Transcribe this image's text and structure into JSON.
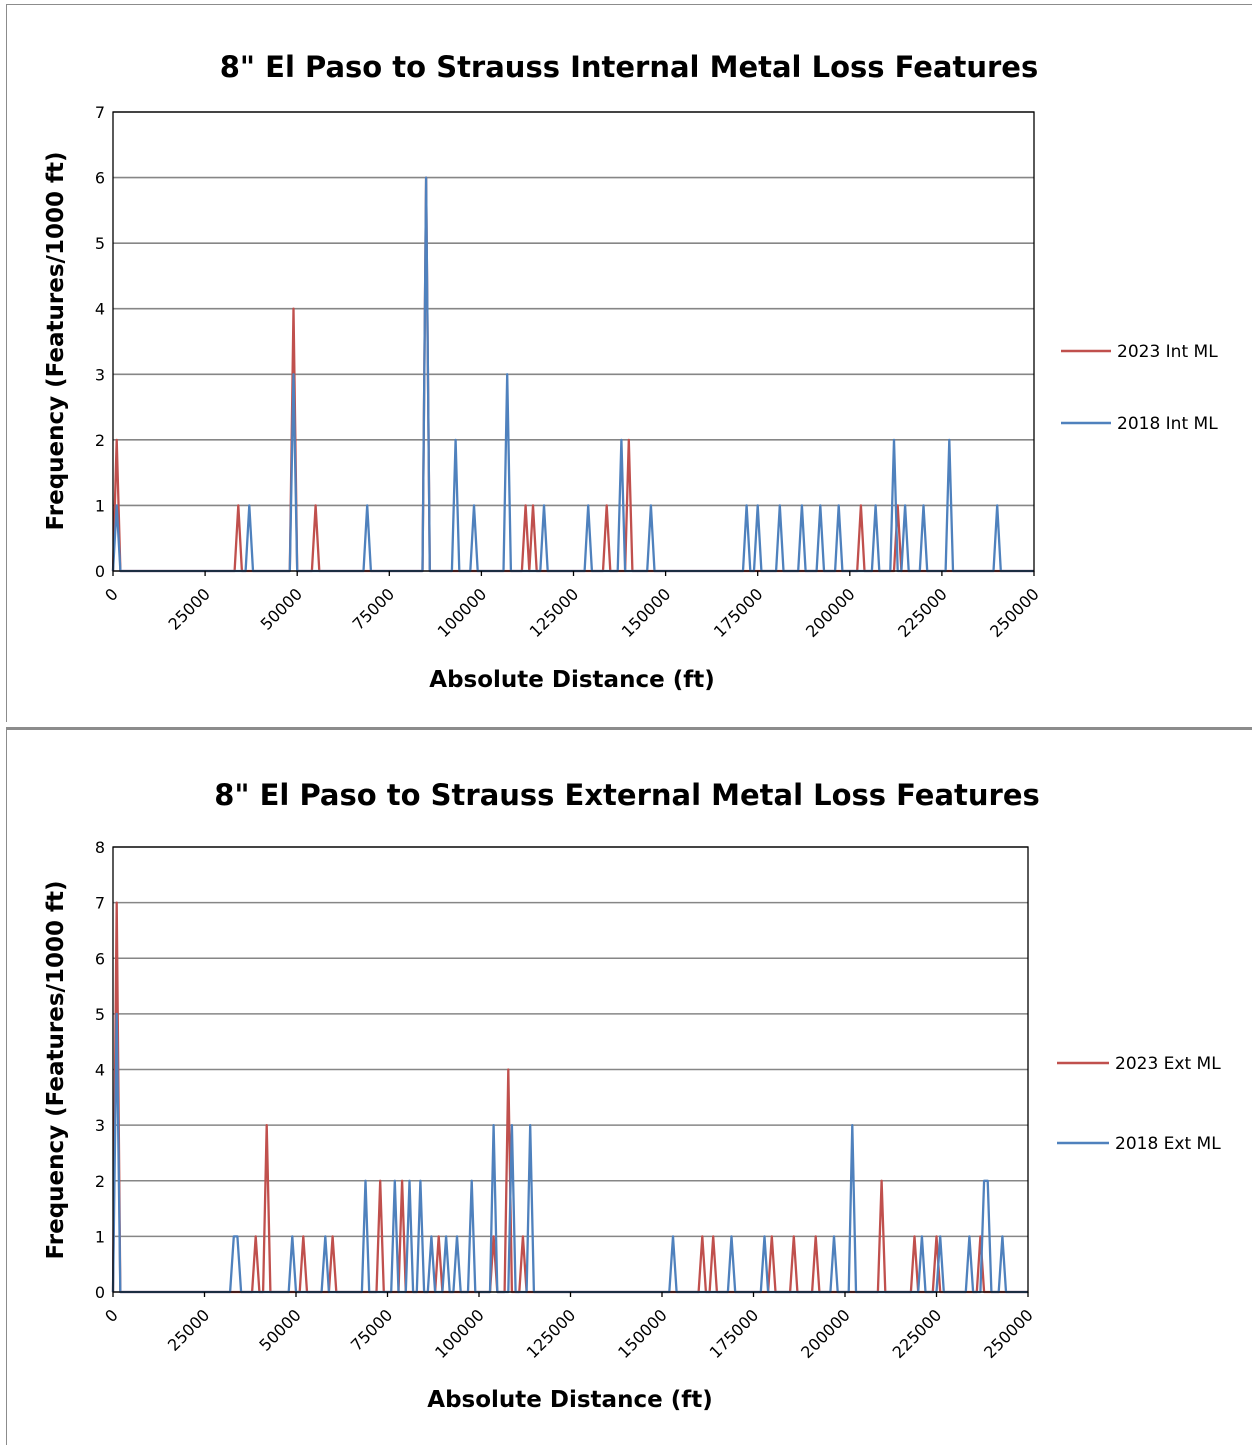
{
  "colors": {
    "series_2023": "#c0504d",
    "series_2018": "#4f81bd"
  },
  "chart_data": [
    {
      "type": "line",
      "title": "8\" El Paso to Strauss Internal Metal Loss Features",
      "xlabel": "Absolute Distance (ft)",
      "ylabel": "Frequency (Features/1000 ft)",
      "xlim": [
        0,
        250000
      ],
      "ylim": [
        0,
        7
      ],
      "xticks": [
        "0",
        "25000",
        "50000",
        "75000",
        "100000",
        "125000",
        "150000",
        "175000",
        "200000",
        "225000",
        "250000"
      ],
      "yticks": [
        "0",
        "1",
        "2",
        "3",
        "4",
        "5",
        "6",
        "7"
      ],
      "grid": true,
      "legend_position": "right",
      "series": [
        {
          "name": "2023 Int ML",
          "color": "#c0504d",
          "points": [
            [
              0,
              0
            ],
            [
              1000,
              2
            ],
            [
              2000,
              0
            ],
            [
              33000,
              0
            ],
            [
              34000,
              1
            ],
            [
              35000,
              0
            ],
            [
              48000,
              0
            ],
            [
              49000,
              4
            ],
            [
              50000,
              0
            ],
            [
              54000,
              0
            ],
            [
              55000,
              1
            ],
            [
              56000,
              0
            ],
            [
              84000,
              0
            ],
            [
              85000,
              6
            ],
            [
              86000,
              0
            ],
            [
              111000,
              0
            ],
            [
              112000,
              1
            ],
            [
              113000,
              0
            ],
            [
              114000,
              1
            ],
            [
              115000,
              0
            ],
            [
              133000,
              0
            ],
            [
              134000,
              1
            ],
            [
              135000,
              0
            ],
            [
              139000,
              0
            ],
            [
              140000,
              2
            ],
            [
              141000,
              0
            ],
            [
              202000,
              0
            ],
            [
              203000,
              1
            ],
            [
              204000,
              0
            ],
            [
              212000,
              0
            ],
            [
              213000,
              1
            ],
            [
              214000,
              0
            ],
            [
              250000,
              0
            ]
          ]
        },
        {
          "name": "2018 Int ML",
          "color": "#4f81bd",
          "points": [
            [
              0,
              0
            ],
            [
              1000,
              1
            ],
            [
              2000,
              0
            ],
            [
              36000,
              0
            ],
            [
              37000,
              1
            ],
            [
              38000,
              0
            ],
            [
              48000,
              0
            ],
            [
              49000,
              3
            ],
            [
              50000,
              0
            ],
            [
              68000,
              0
            ],
            [
              69000,
              1
            ],
            [
              70000,
              0
            ],
            [
              84000,
              0
            ],
            [
              85000,
              6
            ],
            [
              86000,
              0
            ],
            [
              92000,
              0
            ],
            [
              93000,
              2
            ],
            [
              94000,
              0
            ],
            [
              97000,
              0
            ],
            [
              98000,
              1
            ],
            [
              99000,
              0
            ],
            [
              106000,
              0
            ],
            [
              107000,
              3
            ],
            [
              108000,
              0
            ],
            [
              116000,
              0
            ],
            [
              117000,
              1
            ],
            [
              118000,
              0
            ],
            [
              128000,
              0
            ],
            [
              129000,
              1
            ],
            [
              130000,
              0
            ],
            [
              137000,
              0
            ],
            [
              138000,
              2
            ],
            [
              139000,
              0
            ],
            [
              145000,
              0
            ],
            [
              146000,
              1
            ],
            [
              147000,
              0
            ],
            [
              171000,
              0
            ],
            [
              172000,
              1
            ],
            [
              173000,
              0
            ],
            [
              174000,
              0
            ],
            [
              175000,
              1
            ],
            [
              176000,
              0
            ],
            [
              180000,
              0
            ],
            [
              181000,
              1
            ],
            [
              182000,
              0
            ],
            [
              186000,
              0
            ],
            [
              187000,
              1
            ],
            [
              188000,
              0
            ],
            [
              191000,
              0
            ],
            [
              192000,
              1
            ],
            [
              193000,
              0
            ],
            [
              196000,
              0
            ],
            [
              197000,
              1
            ],
            [
              198000,
              0
            ],
            [
              206000,
              0
            ],
            [
              207000,
              1
            ],
            [
              208000,
              0
            ],
            [
              211000,
              0
            ],
            [
              212000,
              2
            ],
            [
              213000,
              0
            ],
            [
              214000,
              0
            ],
            [
              215000,
              1
            ],
            [
              216000,
              0
            ],
            [
              219000,
              0
            ],
            [
              220000,
              1
            ],
            [
              221000,
              0
            ],
            [
              226000,
              0
            ],
            [
              227000,
              2
            ],
            [
              228000,
              0
            ],
            [
              239000,
              0
            ],
            [
              240000,
              1
            ],
            [
              241000,
              0
            ],
            [
              250000,
              0
            ]
          ]
        }
      ]
    },
    {
      "type": "line",
      "title": "8\" El Paso to Strauss External Metal Loss Features",
      "xlabel": "Absolute Distance (ft)",
      "ylabel": "Frequency (Features/1000 ft)",
      "xlim": [
        0,
        250000
      ],
      "ylim": [
        0,
        8
      ],
      "xticks": [
        "0",
        "25000",
        "50000",
        "75000",
        "100000",
        "125000",
        "150000",
        "175000",
        "200000",
        "225000",
        "250000"
      ],
      "yticks": [
        "0",
        "1",
        "2",
        "3",
        "4",
        "5",
        "6",
        "7",
        "8"
      ],
      "grid": true,
      "legend_position": "right",
      "series": [
        {
          "name": "2023 Ext ML",
          "color": "#c0504d",
          "points": [
            [
              0,
              0
            ],
            [
              1000,
              7
            ],
            [
              2000,
              0
            ],
            [
              38000,
              0
            ],
            [
              39000,
              1
            ],
            [
              40000,
              0
            ],
            [
              41000,
              0
            ],
            [
              42000,
              3
            ],
            [
              43000,
              0
            ],
            [
              51000,
              0
            ],
            [
              52000,
              1
            ],
            [
              53000,
              0
            ],
            [
              59000,
              0
            ],
            [
              60000,
              1
            ],
            [
              61000,
              0
            ],
            [
              72000,
              0
            ],
            [
              73000,
              2
            ],
            [
              74000,
              0
            ],
            [
              78000,
              0
            ],
            [
              79000,
              2
            ],
            [
              80000,
              0
            ],
            [
              88000,
              0
            ],
            [
              89000,
              1
            ],
            [
              90000,
              0
            ],
            [
              103000,
              0
            ],
            [
              104000,
              1
            ],
            [
              105000,
              0
            ],
            [
              107000,
              0
            ],
            [
              108000,
              4
            ],
            [
              109000,
              0
            ],
            [
              111000,
              0
            ],
            [
              112000,
              1
            ],
            [
              113000,
              0
            ],
            [
              160000,
              0
            ],
            [
              161000,
              1
            ],
            [
              162000,
              0
            ],
            [
              163000,
              0
            ],
            [
              164000,
              1
            ],
            [
              165000,
              0
            ],
            [
              179000,
              0
            ],
            [
              180000,
              1
            ],
            [
              181000,
              0
            ],
            [
              185000,
              0
            ],
            [
              186000,
              1
            ],
            [
              187000,
              0
            ],
            [
              191000,
              0
            ],
            [
              192000,
              1
            ],
            [
              193000,
              0
            ],
            [
              209000,
              0
            ],
            [
              210000,
              2
            ],
            [
              211000,
              0
            ],
            [
              218000,
              0
            ],
            [
              219000,
              1
            ],
            [
              220000,
              0
            ],
            [
              224000,
              0
            ],
            [
              225000,
              1
            ],
            [
              226000,
              0
            ],
            [
              236000,
              0
            ],
            [
              237000,
              1
            ],
            [
              238000,
              0
            ],
            [
              250000,
              0
            ]
          ]
        },
        {
          "name": "2018 Ext ML",
          "color": "#4f81bd",
          "points": [
            [
              0,
              0
            ],
            [
              1000,
              5
            ],
            [
              2000,
              0
            ],
            [
              32000,
              0
            ],
            [
              33000,
              1
            ],
            [
              34000,
              1
            ],
            [
              35000,
              0
            ],
            [
              48000,
              0
            ],
            [
              49000,
              1
            ],
            [
              50000,
              0
            ],
            [
              57000,
              0
            ],
            [
              58000,
              1
            ],
            [
              59000,
              0
            ],
            [
              68000,
              0
            ],
            [
              69000,
              2
            ],
            [
              70000,
              0
            ],
            [
              76000,
              0
            ],
            [
              77000,
              2
            ],
            [
              78000,
              0
            ],
            [
              80000,
              0
            ],
            [
              81000,
              2
            ],
            [
              82000,
              0
            ],
            [
              83000,
              0
            ],
            [
              84000,
              2
            ],
            [
              85000,
              0
            ],
            [
              86000,
              0
            ],
            [
              87000,
              1
            ],
            [
              88000,
              0
            ],
            [
              90000,
              0
            ],
            [
              91000,
              1
            ],
            [
              92000,
              0
            ],
            [
              93000,
              0
            ],
            [
              94000,
              1
            ],
            [
              95000,
              0
            ],
            [
              97000,
              0
            ],
            [
              98000,
              2
            ],
            [
              99000,
              0
            ],
            [
              103000,
              0
            ],
            [
              104000,
              3
            ],
            [
              105000,
              0
            ],
            [
              108000,
              0
            ],
            [
              109000,
              3
            ],
            [
              110000,
              0
            ],
            [
              113000,
              0
            ],
            [
              114000,
              3
            ],
            [
              115000,
              0
            ],
            [
              152000,
              0
            ],
            [
              153000,
              1
            ],
            [
              154000,
              0
            ],
            [
              168000,
              0
            ],
            [
              169000,
              1
            ],
            [
              170000,
              0
            ],
            [
              177000,
              0
            ],
            [
              178000,
              1
            ],
            [
              179000,
              0
            ],
            [
              196000,
              0
            ],
            [
              197000,
              1
            ],
            [
              198000,
              0
            ],
            [
              201000,
              0
            ],
            [
              202000,
              3
            ],
            [
              203000,
              0
            ],
            [
              220000,
              0
            ],
            [
              221000,
              1
            ],
            [
              222000,
              0
            ],
            [
              225000,
              0
            ],
            [
              226000,
              1
            ],
            [
              227000,
              0
            ],
            [
              233000,
              0
            ],
            [
              234000,
              1
            ],
            [
              235000,
              0
            ],
            [
              237000,
              0
            ],
            [
              238000,
              2
            ],
            [
              239000,
              2
            ],
            [
              240000,
              0
            ],
            [
              242000,
              0
            ],
            [
              243000,
              1
            ],
            [
              244000,
              0
            ],
            [
              250000,
              0
            ]
          ]
        }
      ]
    }
  ]
}
